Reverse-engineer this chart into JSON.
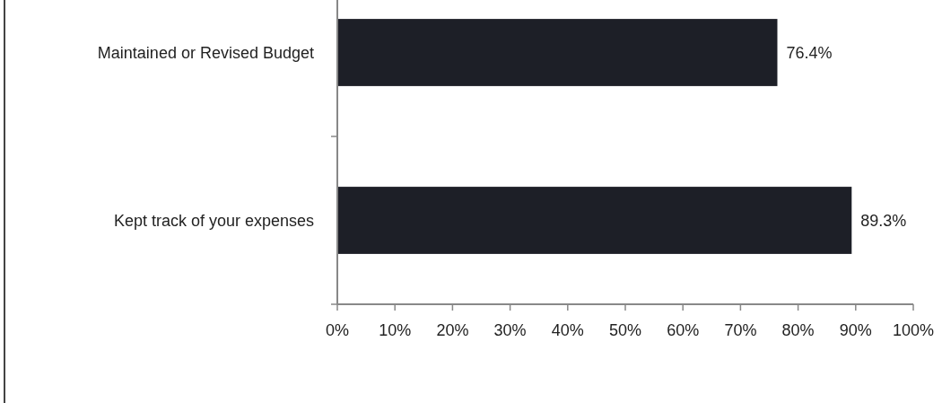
{
  "chart_data": {
    "type": "bar",
    "orientation": "horizontal",
    "categories": [
      "Maintained or Revised Budget",
      "Kept track of your expenses"
    ],
    "values": [
      76.4,
      89.3
    ],
    "value_labels": [
      "76.4%",
      "89.3%"
    ],
    "color": "#1d1f27",
    "xlim": [
      0,
      100
    ],
    "xticks": [
      {
        "value": 0,
        "label": "0%"
      },
      {
        "value": 10,
        "label": "10%"
      },
      {
        "value": 20,
        "label": "20%"
      },
      {
        "value": 30,
        "label": "30%"
      },
      {
        "value": 40,
        "label": "40%"
      },
      {
        "value": 50,
        "label": "50%"
      },
      {
        "value": 60,
        "label": "60%"
      },
      {
        "value": 70,
        "label": "70%"
      },
      {
        "value": 80,
        "label": "80%"
      },
      {
        "value": 90,
        "label": "90%"
      },
      {
        "value": 100,
        "label": "100%"
      }
    ]
  }
}
